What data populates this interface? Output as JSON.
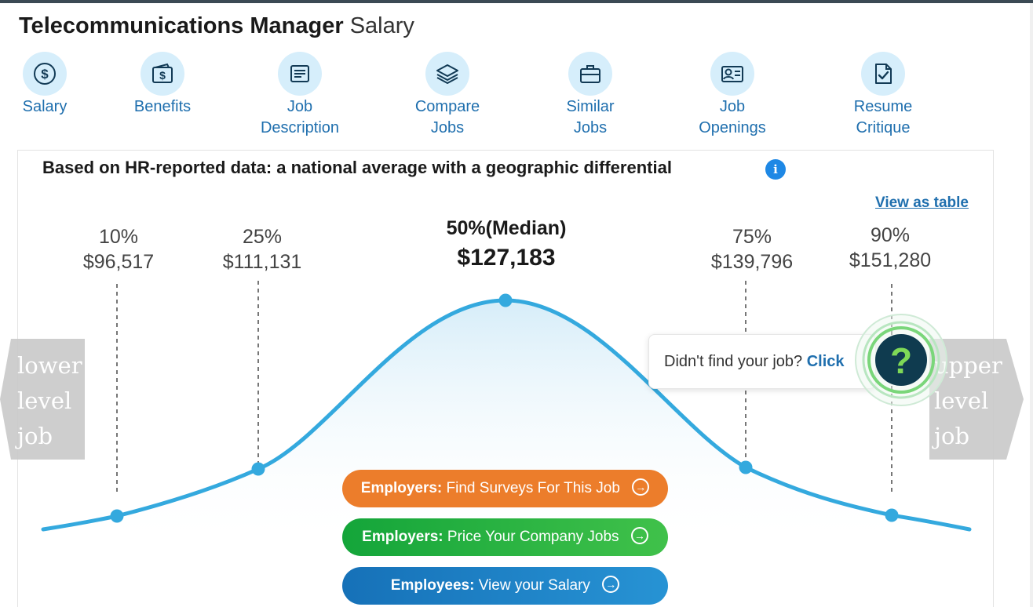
{
  "title": {
    "role": "Telecommunications Manager",
    "suffix": "Salary"
  },
  "nav": [
    {
      "label": "Salary",
      "icon": "dollar-circle-icon"
    },
    {
      "label": "Benefits",
      "icon": "wallet-dollar-icon"
    },
    {
      "label": "Job\nDescription",
      "icon": "document-icon"
    },
    {
      "label": "Compare\nJobs",
      "icon": "layers-icon"
    },
    {
      "label": "Similar\nJobs",
      "icon": "briefcase-icon"
    },
    {
      "label": "Job\nOpenings",
      "icon": "id-card-icon"
    },
    {
      "label": "Resume\nCritique",
      "icon": "resume-check-icon"
    }
  ],
  "headline": "Based on HR-reported data: a national average with a geographic differential",
  "info_icon": "i",
  "view_table": "View as table",
  "percentiles": [
    {
      "label": "10%",
      "value": "$96,517"
    },
    {
      "label": "25%",
      "value": "$111,131"
    },
    {
      "label": "50%(Median)",
      "value": "$127,183"
    },
    {
      "label": "75%",
      "value": "$139,796"
    },
    {
      "label": "90%",
      "value": "$151,280"
    }
  ],
  "side_nav": {
    "lower": "lower\nlevel\njob",
    "upper": "upper\nlevel\njob"
  },
  "help": {
    "text": "Didn't find your job?",
    "click": "Click",
    "badge": "?"
  },
  "cta": [
    {
      "bold": "Employers:",
      "text": "Find Surveys For This Job",
      "arrow": "→"
    },
    {
      "bold": "Employers:",
      "text": "Price Your Company Jobs",
      "arrow": "→"
    },
    {
      "bold": "Employees:",
      "text": "View your Salary",
      "arrow": "→"
    }
  ],
  "colors": {
    "curve": "#34a9de",
    "nav_circle": "#d6eefb",
    "link": "#1f6fae",
    "orange": "#ec7d2b",
    "green": "#14a53a",
    "blue": "#1671b8",
    "side_arrow": "#c9c9c9",
    "help_badge": "#0f3b4f",
    "help_ring": "#7ad67a"
  }
}
